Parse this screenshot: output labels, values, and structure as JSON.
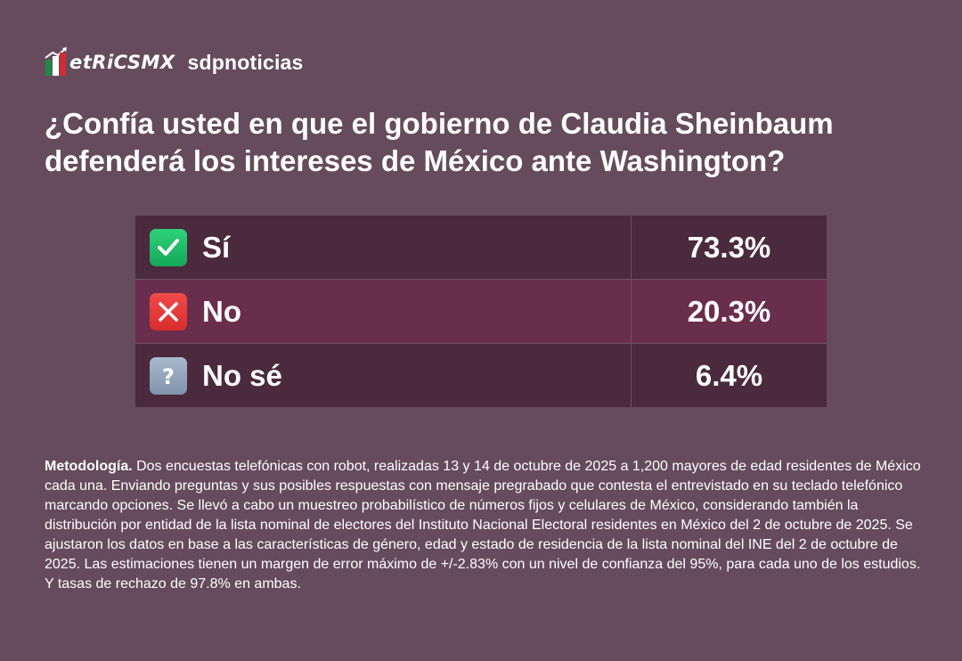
{
  "brand": {
    "metrics_logo": "etRiCSMX",
    "partner_logo": "sdpnoticias"
  },
  "title": "¿Confía usted en que el gobierno de Claudia Sheinbaum defenderá los intereses de México ante Washington?",
  "chart_data": {
    "type": "table",
    "title": "¿Confía usted en que el gobierno de Claudia Sheinbaum defenderá los intereses de México ante Washington?",
    "categories": [
      "Sí",
      "No",
      "No sé"
    ],
    "values": [
      73.3,
      20.3,
      6.4
    ],
    "value_labels": [
      "73.3%",
      "20.3%",
      "6.4%"
    ],
    "icons": [
      "check-mark-icon",
      "cross-mark-icon",
      "question-mark-icon"
    ],
    "colors": {
      "check": "#1fbf6a",
      "cross": "#e63a3a",
      "question": "#93a6bd",
      "row_dark": "#4b2a3d",
      "row_highlight": "#6a2e4d",
      "background": "#654b5b"
    }
  },
  "methodology": {
    "label": "Metodología.",
    "text": " Dos encuestas telefónicas con robot, realizadas 13 y 14 de octubre de 2025 a 1,200 mayores de edad residentes de México cada una. Enviando preguntas y sus posibles respuestas con mensaje pregrabado que contesta el entrevistado en su teclado telefónico marcando opciones. Se llevó a cabo un muestreo probabilístico de números fijos y celulares de México, considerando también la distribución por entidad de la lista nominal de electores del Instituto Nacional Electoral residentes en México del 2 de octubre de 2025. Se ajustaron los datos en base a las características de género, edad y estado de residencia de la lista nominal del INE del 2 de octubre de 2025. Las estimaciones tienen un margen de error máximo de +/-2.83% con un nivel de confianza del 95%, para cada uno de los estudios. Y tasas de rechazo de 97.8% en ambas."
  }
}
